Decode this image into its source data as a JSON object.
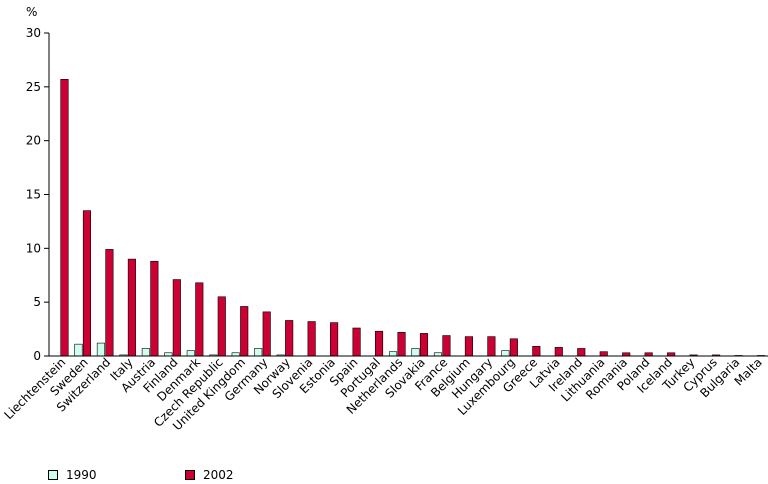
{
  "chart_data": {
    "type": "bar",
    "title": "",
    "ylabel": "%",
    "xlabel": "",
    "ylim": [
      0,
      30
    ],
    "yticks": [
      0,
      5,
      10,
      15,
      20,
      25,
      30
    ],
    "grid": false,
    "legend_position": "bottom-left",
    "categories": [
      "Liechtenstein",
      "Sweden",
      "Switzerland",
      "Italy",
      "Austria",
      "Finland",
      "Denmark",
      "Czech Republic",
      "United Kingdom",
      "Germany",
      "Norway",
      "Slovenia",
      "Estonia",
      "Spain",
      "Portugal",
      "Netherlands",
      "Slovakia",
      "France",
      "Belgium",
      "Hungary",
      "Luxembourg",
      "Greece",
      "Latvia",
      "Ireland",
      "Lithuania",
      "Romania",
      "Poland",
      "Iceland",
      "Turkey",
      "Cyprus",
      "Bulgaria",
      "Malta"
    ],
    "series": [
      {
        "name": "1990",
        "color": "#ccffee",
        "values": [
          0,
          1.1,
          1.2,
          0.1,
          0.7,
          0.3,
          0.5,
          0.1,
          0.3,
          0.7,
          0.1,
          0,
          0,
          0,
          0,
          0.4,
          0.7,
          0.3,
          0,
          0,
          0.5,
          0,
          0,
          0,
          0,
          0,
          0,
          0,
          0,
          0,
          0,
          0
        ]
      },
      {
        "name": "2002",
        "color": "#cc0033",
        "values": [
          25.7,
          13.5,
          9.9,
          9.0,
          8.8,
          7.1,
          6.8,
          5.5,
          4.6,
          4.1,
          3.3,
          3.2,
          3.1,
          2.6,
          2.3,
          2.2,
          2.1,
          1.9,
          1.8,
          1.8,
          1.6,
          0.9,
          0.8,
          0.7,
          0.4,
          0.3,
          0.3,
          0.3,
          0.1,
          0.1,
          0.05,
          0.05
        ]
      }
    ]
  }
}
